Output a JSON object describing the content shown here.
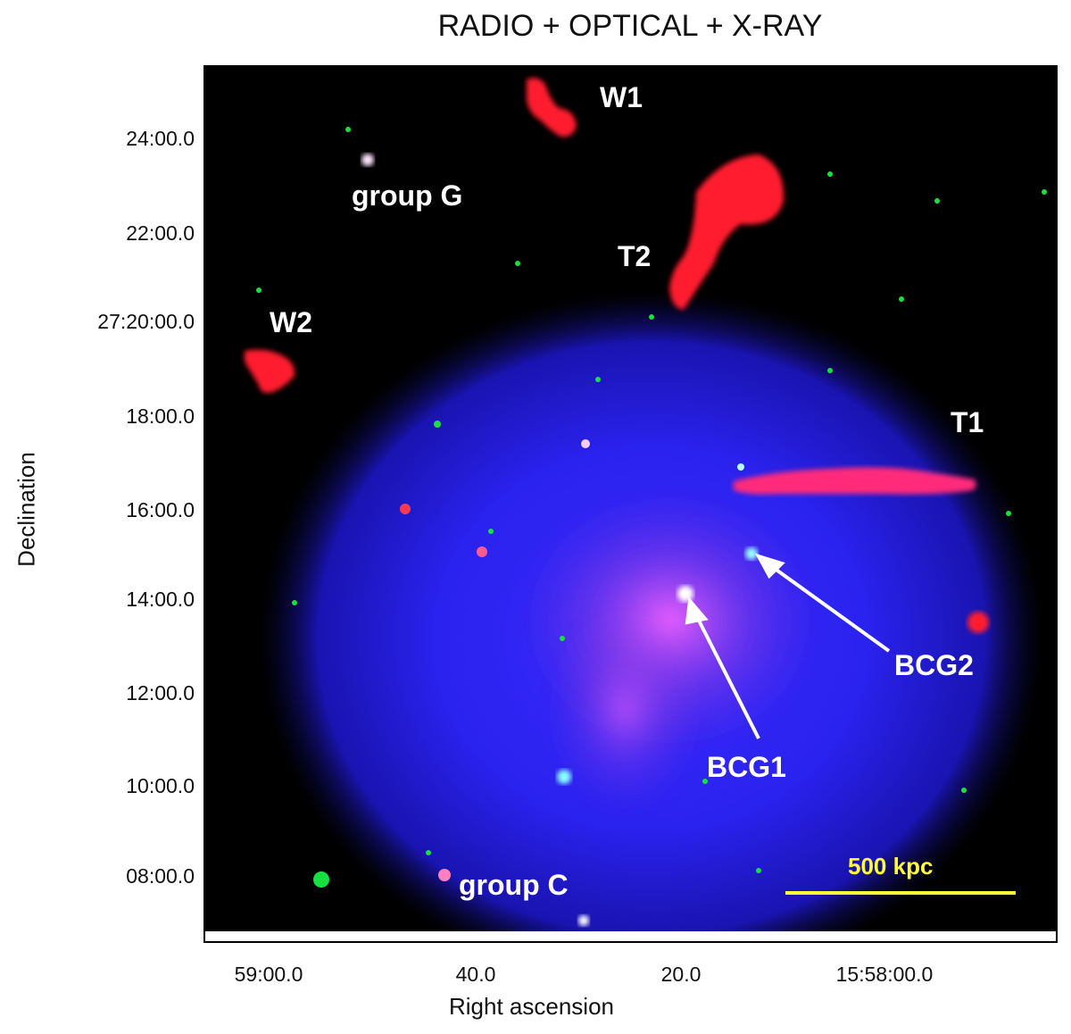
{
  "title": "RADIO + OPTICAL + X-RAY",
  "axes": {
    "x_title": "Right ascension",
    "y_title": "Declination",
    "y_ticks": [
      "24:00.0",
      "22:00.0",
      "27:20:00.0",
      "18:00.0",
      "16:00.0",
      "14:00.0",
      "12:00.0",
      "10:00.0",
      "08:00.0"
    ],
    "x_ticks": [
      "59:00.0",
      "40.0",
      "20.0",
      "15:58:00.0"
    ]
  },
  "labels": {
    "w1": "W1",
    "w2": "W2",
    "group_g": "group G",
    "t2": "T2",
    "t1": "T1",
    "bcg1": "BCG1",
    "bcg2": "BCG2",
    "group_c": "group C",
    "scale": "500 kpc"
  },
  "colors": {
    "radio": "#ff1a2e",
    "xray": "#2a1aff",
    "optical": "#00e040",
    "scale_bar": "#ffff33"
  }
}
